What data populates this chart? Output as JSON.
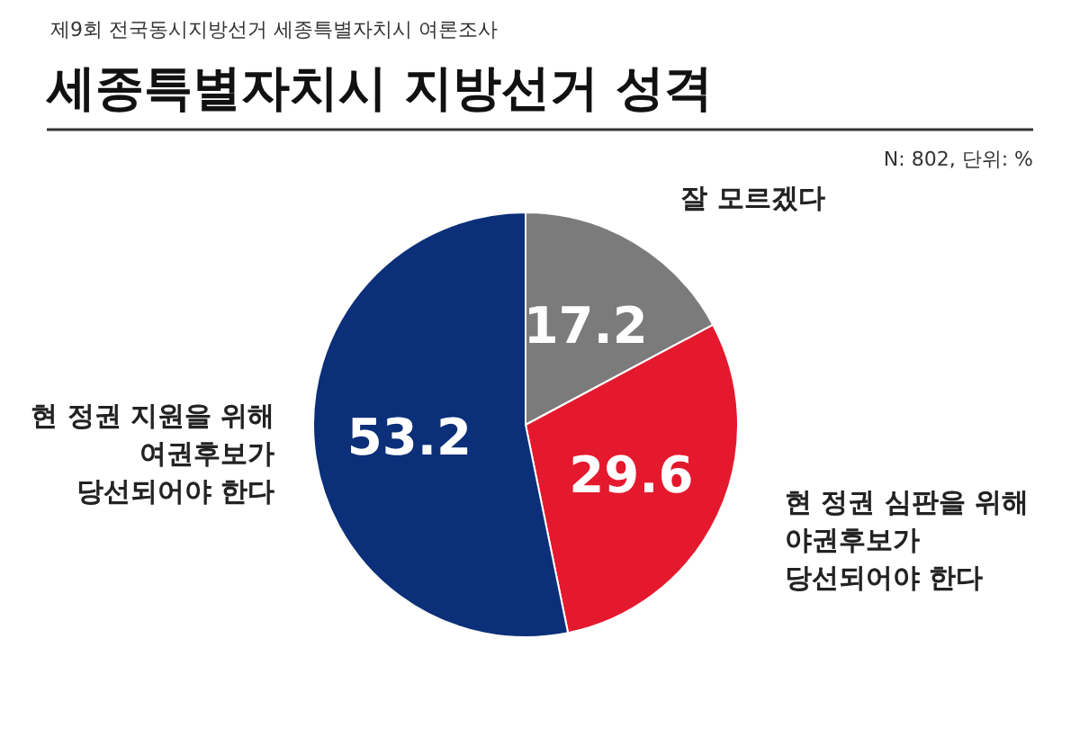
{
  "chart_data": {
    "type": "pie",
    "title": "세종특별자치시 지방선거 성격",
    "subtitle": "제9회 전국동시지방선거 세종특별자치시 여론조사",
    "annotations": [
      "N: 802, 단위: %"
    ],
    "categories": [
      "잘 모르겠다",
      "현 정권 심판을 위해\n야권후보가\n당선되어야 한다",
      "현 정권 지원을 위해\n여권후보가\n당선되어야 한다"
    ],
    "values": [
      17.2,
      29.6,
      53.2
    ],
    "colors": [
      "#7b7b7b",
      "#e5192d",
      "#0b2f78"
    ],
    "data_labels": true
  }
}
